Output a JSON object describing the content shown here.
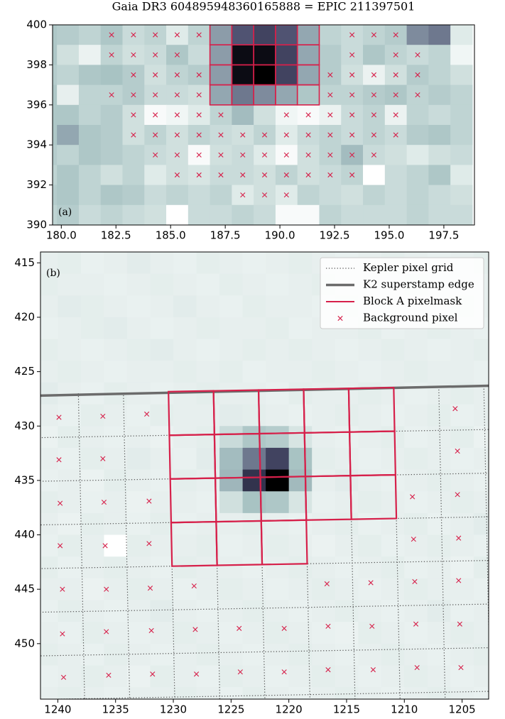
{
  "chart_data": [
    {
      "type": "heatmap",
      "title": "Gaia DR3 604895948360165888 = EPIC 211397501",
      "annotation": "(a)",
      "colormap": "bone_r",
      "extent": [
        178.8,
        198.8,
        390,
        400
      ],
      "xlim": [
        179.6,
        198.9
      ],
      "ylim": [
        390,
        400
      ],
      "xticks": [
        {
          "value": 180,
          "label": "180.0"
        },
        {
          "value": 182.5,
          "label": "182.5"
        },
        {
          "value": 185,
          "label": "185.0"
        },
        {
          "value": 187.5,
          "label": "187.5"
        },
        {
          "value": 190,
          "label": "190.0"
        },
        {
          "value": 192.5,
          "label": "192.5"
        },
        {
          "value": 195,
          "label": "195.0"
        },
        {
          "value": 197.5,
          "label": "197.5"
        }
      ],
      "yticks": [
        390,
        392,
        394,
        396,
        398,
        400
      ],
      "values": [
        [
          30,
          28,
          25,
          30,
          22,
          25,
          15,
          25,
          50,
          70,
          75,
          70,
          45,
          25,
          22,
          25,
          28,
          55,
          60,
          15
        ],
        [
          30,
          20,
          10,
          25,
          20,
          22,
          30,
          22,
          50,
          95,
          95,
          75,
          45,
          28,
          22,
          30,
          25,
          22,
          25,
          8
        ],
        [
          28,
          25,
          30,
          32,
          28,
          20,
          25,
          28,
          50,
          95,
          100,
          75,
          45,
          28,
          20,
          10,
          20,
          28,
          25,
          20
        ],
        [
          30,
          12,
          25,
          25,
          28,
          22,
          22,
          20,
          45,
          60,
          55,
          45,
          30,
          25,
          25,
          28,
          30,
          25,
          28,
          25
        ],
        [
          30,
          30,
          25,
          28,
          20,
          5,
          8,
          15,
          25,
          35,
          20,
          8,
          5,
          10,
          22,
          25,
          10,
          25,
          22,
          25
        ],
        [
          30,
          45,
          30,
          28,
          20,
          25,
          20,
          25,
          22,
          20,
          25,
          15,
          22,
          25,
          22,
          25,
          22,
          28,
          30,
          25
        ],
        [
          28,
          25,
          30,
          28,
          25,
          22,
          20,
          5,
          20,
          22,
          15,
          5,
          20,
          25,
          35,
          22,
          20,
          15,
          20,
          22
        ],
        [
          25,
          30,
          25,
          20,
          25,
          15,
          20,
          18,
          22,
          22,
          20,
          25,
          20,
          22,
          25,
          2,
          22,
          25,
          30,
          15
        ],
        [
          28,
          30,
          25,
          30,
          28,
          22,
          25,
          22,
          25,
          15,
          20,
          15,
          25,
          22,
          20,
          25,
          22,
          25,
          22,
          20
        ],
        [
          25,
          28,
          22,
          25,
          22,
          20,
          2,
          22,
          22,
          25,
          22,
          5,
          5,
          25,
          22,
          22,
          22,
          25,
          22,
          22
        ]
      ],
      "series": [
        {
          "kind": "mask",
          "color": "#d6204a",
          "x": [
            187.3,
            188.3,
            189.3,
            190.3,
            191.3,
            187.3,
            188.3,
            189.3,
            190.3,
            191.3,
            187.3,
            188.3,
            189.3,
            190.3,
            191.3,
            187.3,
            188.3,
            189.3,
            190.3,
            191.3
          ],
          "y": [
            399.5,
            399.5,
            399.5,
            399.5,
            399.5,
            398.5,
            398.5,
            398.5,
            398.5,
            398.5,
            397.5,
            397.5,
            397.5,
            397.5,
            397.5,
            396.5,
            396.5,
            396.5,
            396.5,
            396.5
          ]
        },
        {
          "kind": "scatter",
          "color": "#d6204a",
          "x": [
            182.3,
            183.3,
            184.3,
            185.3,
            186.3,
            193.3,
            194.3,
            195.3,
            182.3,
            183.3,
            184.3,
            185.3,
            193.3,
            195.3,
            196.3,
            183.3,
            184.3,
            185.3,
            186.3,
            192.3,
            193.3,
            194.3,
            195.3,
            196.3,
            182.3,
            183.3,
            184.3,
            185.3,
            186.3,
            192.3,
            193.3,
            194.3,
            195.3,
            196.3,
            183.3,
            184.3,
            185.3,
            186.3,
            187.3,
            190.3,
            191.3,
            192.3,
            193.3,
            194.3,
            195.3,
            183.3,
            184.3,
            185.3,
            186.3,
            187.3,
            188.3,
            189.3,
            190.3,
            191.3,
            192.3,
            193.3,
            194.3,
            195.3,
            184.3,
            185.3,
            186.3,
            187.3,
            188.3,
            189.3,
            190.3,
            191.3,
            192.3,
            193.3,
            194.3,
            185.3,
            186.3,
            187.3,
            188.3,
            189.3,
            190.3,
            191.3,
            192.3,
            193.3,
            188.3,
            189.3,
            190.3
          ],
          "y": [
            399.5,
            399.5,
            399.5,
            399.5,
            399.5,
            399.5,
            399.5,
            399.5,
            398.5,
            398.5,
            398.5,
            398.5,
            398.5,
            398.5,
            398.5,
            397.5,
            397.5,
            397.5,
            397.5,
            397.5,
            397.5,
            397.5,
            397.5,
            397.5,
            396.5,
            396.5,
            396.5,
            396.5,
            396.5,
            396.5,
            396.5,
            396.5,
            396.5,
            396.5,
            395.5,
            395.5,
            395.5,
            395.5,
            395.5,
            395.5,
            395.5,
            395.5,
            395.5,
            395.5,
            395.5,
            394.5,
            394.5,
            394.5,
            394.5,
            394.5,
            394.5,
            394.5,
            394.5,
            394.5,
            394.5,
            394.5,
            394.5,
            394.5,
            393.5,
            393.5,
            393.5,
            393.5,
            393.5,
            393.5,
            393.5,
            393.5,
            393.5,
            393.5,
            393.5,
            392.5,
            392.5,
            392.5,
            392.5,
            392.5,
            392.5,
            392.5,
            392.5,
            392.5,
            391.5,
            391.5,
            391.5
          ]
        }
      ]
    },
    {
      "type": "heatmap",
      "annotation": "(b)",
      "colormap": "bone_r",
      "legend": "upper right",
      "extent": [
        1242,
        1202,
        456,
        414
      ],
      "xlim": [
        1241.5,
        1202.7
      ],
      "ylim": [
        455.1,
        414
      ],
      "xticks": [
        1240,
        1235,
        1230,
        1225,
        1220,
        1215,
        1210,
        1205
      ],
      "yticks": [
        415,
        420,
        425,
        430,
        435,
        440,
        445,
        450
      ],
      "values": [
        [
          12,
          13,
          11,
          12,
          14,
          12,
          11,
          13,
          12,
          11,
          12,
          13,
          12,
          11,
          12,
          13,
          12,
          11,
          12,
          13
        ],
        [
          13,
          12,
          12,
          11,
          12,
          13,
          12,
          11,
          13,
          12,
          11,
          12,
          13,
          12,
          12,
          11,
          13,
          12,
          11,
          12
        ],
        [
          12,
          14,
          13,
          12,
          11,
          12,
          14,
          12,
          11,
          13,
          12,
          12,
          11,
          13,
          12,
          12,
          11,
          12,
          13,
          12
        ],
        [
          11,
          12,
          13,
          14,
          12,
          11,
          12,
          13,
          12,
          12,
          13,
          11,
          12,
          12,
          13,
          11,
          12,
          13,
          12,
          11
        ],
        [
          13,
          12,
          11,
          12,
          13,
          14,
          12,
          11,
          12,
          13,
          12,
          13,
          12,
          11,
          12,
          13,
          12,
          11,
          12,
          13
        ],
        [
          12,
          13,
          12,
          11,
          12,
          12,
          13,
          12,
          13,
          11,
          12,
          12,
          13,
          12,
          11,
          12,
          13,
          12,
          12,
          11
        ],
        [
          14,
          12,
          11,
          13,
          12,
          11,
          12,
          13,
          12,
          12,
          11,
          13,
          12,
          12,
          13,
          12,
          11,
          12,
          13,
          12
        ],
        [
          12,
          11,
          13,
          12,
          11,
          13,
          12,
          12,
          14,
          13,
          12,
          11,
          12,
          13,
          12,
          11,
          12,
          13,
          11,
          12
        ],
        [
          10,
          13,
          12,
          11,
          12,
          10,
          12,
          13,
          22,
          30,
          28,
          18,
          12,
          11,
          12,
          13,
          11,
          12,
          13,
          10
        ],
        [
          12,
          11,
          13,
          12,
          14,
          12,
          11,
          14,
          35,
          60,
          75,
          32,
          13,
          12,
          11,
          12,
          13,
          12,
          11,
          12
        ],
        [
          11,
          12,
          10,
          13,
          12,
          11,
          13,
          12,
          38,
          80,
          100,
          36,
          12,
          14,
          12,
          11,
          12,
          13,
          12,
          11
        ],
        [
          13,
          12,
          11,
          12,
          10,
          12,
          12,
          11,
          20,
          32,
          30,
          18,
          11,
          12,
          13,
          12,
          11,
          12,
          13,
          12
        ],
        [
          12,
          10,
          13,
          12,
          11,
          13,
          11,
          12,
          12,
          13,
          12,
          11,
          12,
          13,
          11,
          12,
          13,
          11,
          12,
          14
        ],
        [
          11,
          13,
          12,
          2,
          13,
          12,
          12,
          13,
          11,
          12,
          13,
          12,
          10,
          12,
          13,
          11,
          12,
          13,
          12,
          11
        ],
        [
          13,
          11,
          12,
          13,
          12,
          11,
          13,
          12,
          12,
          11,
          12,
          13,
          12,
          11,
          12,
          13,
          11,
          12,
          10,
          13
        ],
        [
          12,
          12,
          10,
          12,
          13,
          12,
          11,
          12,
          13,
          12,
          11,
          12,
          13,
          12,
          11,
          12,
          13,
          12,
          12,
          11
        ],
        [
          11,
          13,
          12,
          11,
          12,
          14,
          12,
          11,
          12,
          13,
          12,
          11,
          12,
          13,
          12,
          11,
          12,
          14,
          11,
          12
        ],
        [
          12,
          11,
          13,
          12,
          11,
          12,
          13,
          12,
          11,
          12,
          13,
          12,
          11,
          10,
          13,
          12,
          11,
          12,
          13,
          12
        ],
        [
          13,
          12,
          11,
          13,
          12,
          11,
          12,
          13,
          12,
          11,
          12,
          13,
          12,
          11,
          12,
          13,
          12,
          11,
          12,
          13
        ],
        [
          11,
          12,
          13,
          12,
          10,
          13,
          12,
          11,
          13,
          12,
          11,
          12,
          13,
          12,
          11,
          12,
          13,
          12,
          11,
          12
        ],
        [
          12,
          13,
          12,
          11,
          12,
          12,
          13,
          12,
          11,
          13,
          12,
          11,
          12,
          13,
          12,
          11,
          12,
          13,
          12,
          11
        ]
      ],
      "series": [
        {
          "name": "Kepler pixel grid",
          "kind": "grid",
          "color": "#555555",
          "origin": [
            1230.42,
            426.84
          ],
          "col_step": [
            -3.9,
            -0.075
          ],
          "row_step": [
            -0.077,
            4.01
          ]
        },
        {
          "name": "K2 superstamp edge",
          "kind": "line",
          "color": "#6b6b6b",
          "x": [
            1241.5,
            1202.7
          ],
          "y": [
            427.2,
            426.3
          ]
        },
        {
          "name": "Block A pixelmask",
          "kind": "mask",
          "color": "#d6204a",
          "cells": [
            [
              0,
              0
            ],
            [
              1,
              0
            ],
            [
              2,
              0
            ],
            [
              3,
              0
            ],
            [
              4,
              0
            ],
            [
              0,
              1
            ],
            [
              1,
              1
            ],
            [
              2,
              1
            ],
            [
              3,
              1
            ],
            [
              4,
              1
            ],
            [
              0,
              2
            ],
            [
              1,
              2
            ],
            [
              2,
              2
            ],
            [
              3,
              2
            ],
            [
              4,
              2
            ],
            [
              0,
              3
            ],
            [
              1,
              3
            ],
            [
              2,
              3
            ]
          ]
        },
        {
          "name": "Background pixel",
          "kind": "scatter",
          "color": "#d6204a",
          "x": [
            1239.9,
            1236.1,
            1232.3,
            1239.9,
            1236.1,
            1239.8,
            1236.0,
            1232.1,
            1239.8,
            1235.9,
            1232.1,
            1239.6,
            1235.8,
            1232.0,
            1228.2,
            1216.7,
            1212.9,
            1209.1,
            1205.3,
            1239.6,
            1235.8,
            1231.9,
            1228.1,
            1224.3,
            1220.4,
            1216.6,
            1212.8,
            1209.0,
            1205.2,
            1239.5,
            1235.6,
            1231.8,
            1228.0,
            1224.2,
            1220.4,
            1216.6,
            1212.7,
            1208.9,
            1205.1,
            1205.6,
            1205.4,
            1205.4,
            1209.3,
            1209.2,
            1205.3
          ],
          "y": [
            429.2,
            429.1,
            428.9,
            433.1,
            433.0,
            437.1,
            437.0,
            436.9,
            441.0,
            441.0,
            440.8,
            445.0,
            445.0,
            444.9,
            444.7,
            444.5,
            444.4,
            444.3,
            444.2,
            449.1,
            448.9,
            448.8,
            448.7,
            448.6,
            448.6,
            448.4,
            448.4,
            448.2,
            448.2,
            453.1,
            452.9,
            452.8,
            452.8,
            452.6,
            452.6,
            452.4,
            452.4,
            452.2,
            452.2,
            428.4,
            432.3,
            436.3,
            436.5,
            440.4,
            440.3
          ]
        }
      ]
    }
  ]
}
